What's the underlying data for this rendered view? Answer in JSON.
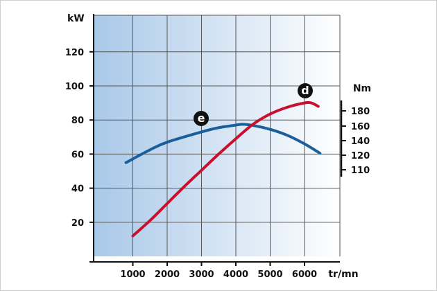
{
  "chart_data": {
    "type": "line",
    "x_unit": "tr/mn",
    "x_ticks": [
      1000,
      2000,
      3000,
      4000,
      5000,
      6000
    ],
    "xlim": [
      0,
      7000
    ],
    "y_left_unit": "kW",
    "y_left_ticks": [
      20,
      40,
      60,
      80,
      100,
      120
    ],
    "y_left_lim": [
      0,
      140
    ],
    "y_right_unit": "Nm",
    "y_right_ticks": [
      110,
      120,
      140,
      160,
      180
    ],
    "grid": true,
    "series": [
      {
        "name": "e",
        "color": "#1b5e9c",
        "points": [
          [
            800,
            55
          ],
          [
            1500,
            62.5
          ],
          [
            2000,
            67
          ],
          [
            3000,
            73
          ],
          [
            3500,
            75.5
          ],
          [
            4000,
            77
          ],
          [
            4200,
            77.5
          ],
          [
            4500,
            76.8
          ],
          [
            5000,
            74.5
          ],
          [
            5500,
            71
          ],
          [
            6000,
            66
          ],
          [
            6450,
            60.5
          ]
        ]
      },
      {
        "name": "d",
        "color": "#c8102e",
        "points": [
          [
            1000,
            12
          ],
          [
            1500,
            21
          ],
          [
            2000,
            31
          ],
          [
            2500,
            41
          ],
          [
            3000,
            50.5
          ],
          [
            3500,
            60
          ],
          [
            4000,
            69
          ],
          [
            4500,
            77.5
          ],
          [
            5000,
            83.5
          ],
          [
            5500,
            87.5
          ],
          [
            6000,
            90
          ],
          [
            6200,
            90
          ],
          [
            6400,
            88
          ]
        ]
      }
    ]
  }
}
